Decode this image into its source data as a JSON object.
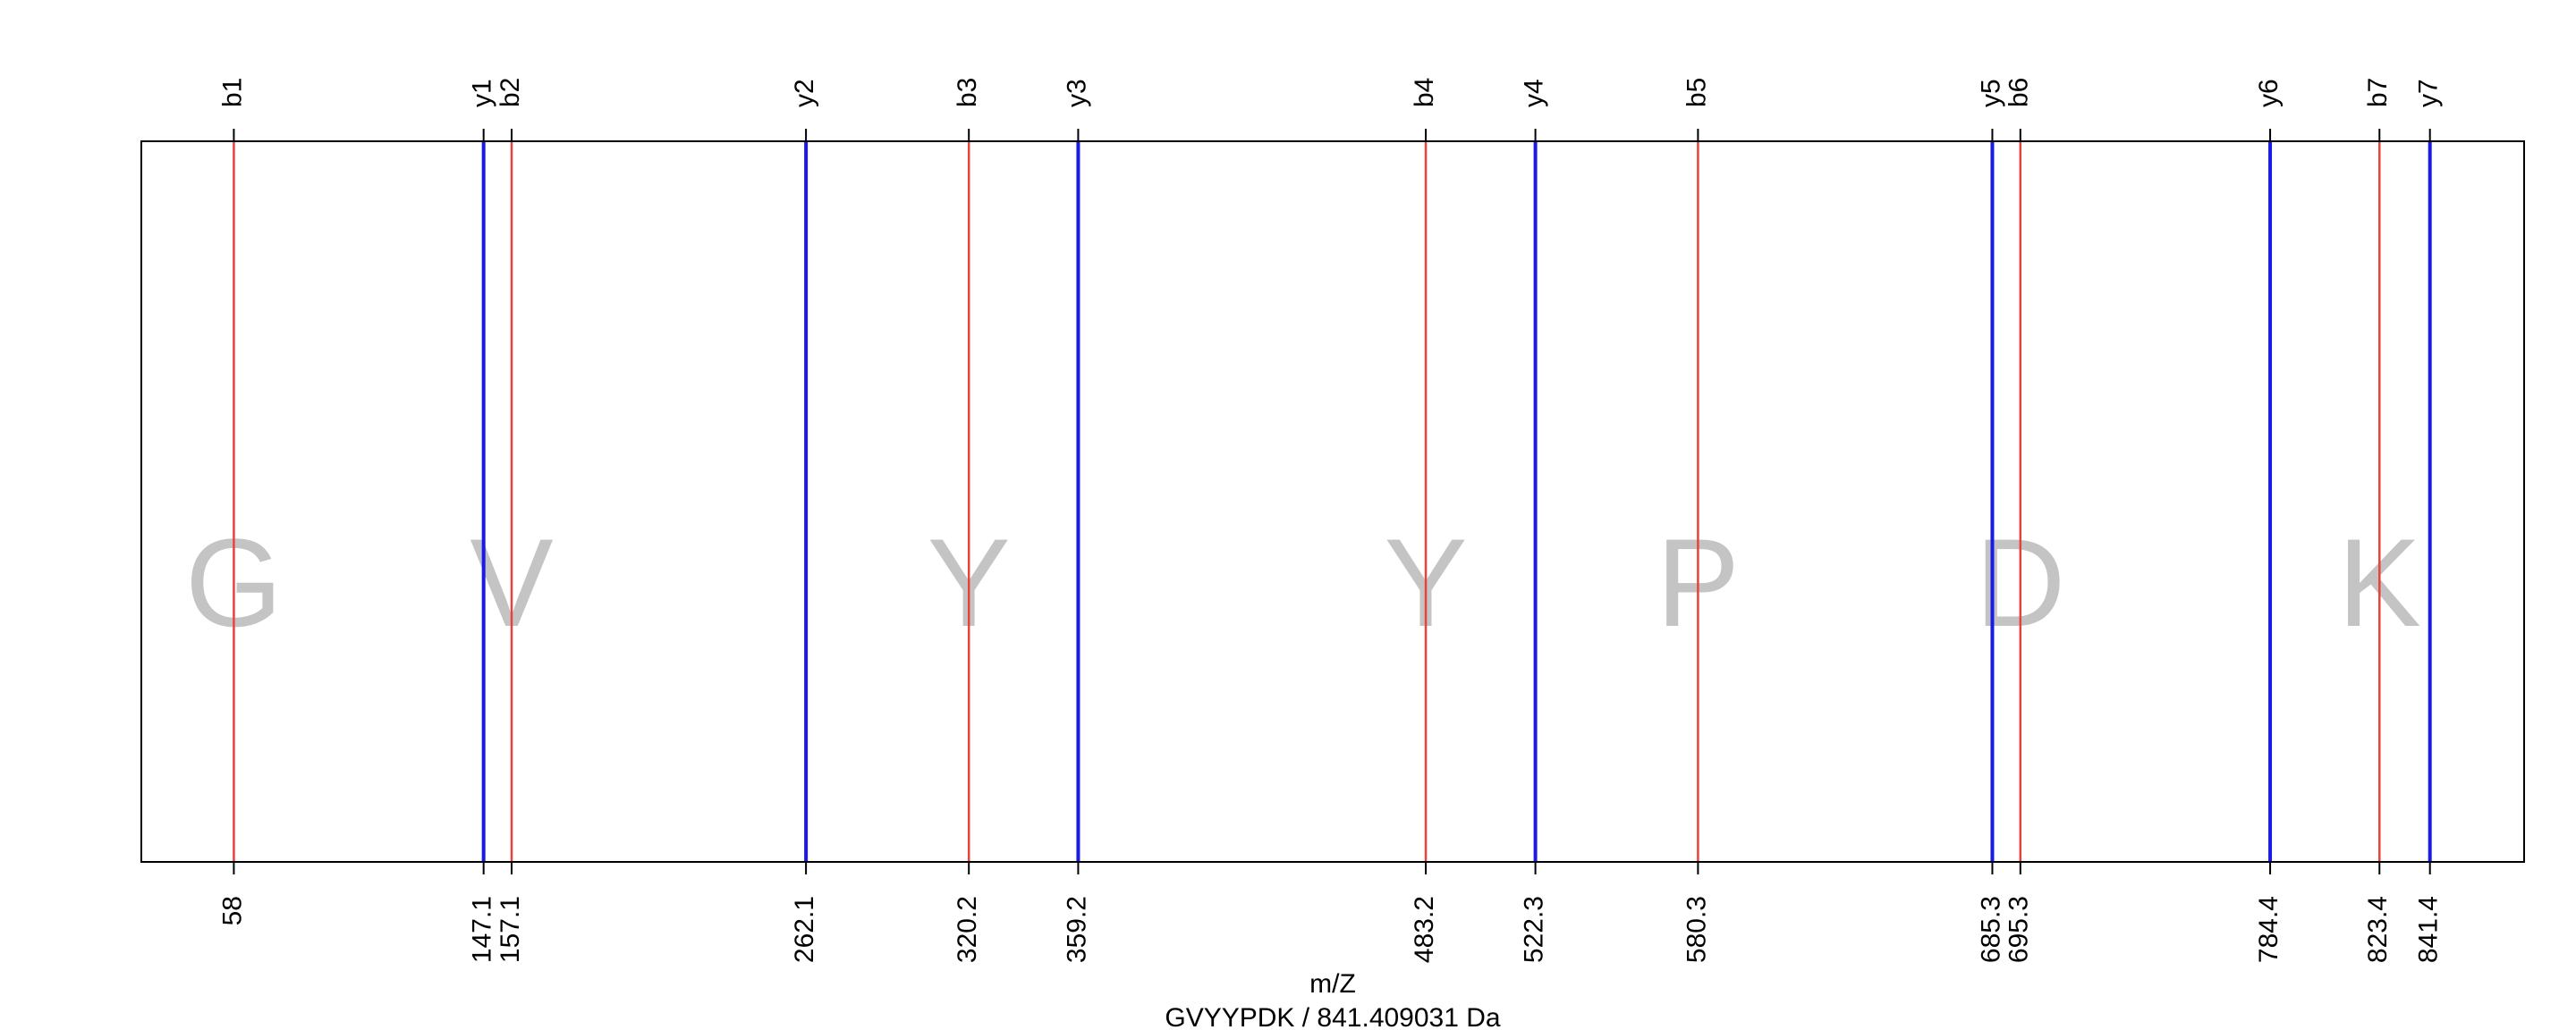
{
  "chart_data": {
    "type": "spectrum-annotation",
    "xlabel": "m/Z",
    "subtitle": "GVYYPDK / 841.409031 Da",
    "xlim": [
      25,
      875
    ],
    "colors": {
      "b": "#e8423c",
      "y": "#1a1ae6",
      "residue": "#c4c4c4",
      "frame": "#000000"
    },
    "ions": [
      {
        "label": "b1",
        "type": "b",
        "mz": 58,
        "tick": "58"
      },
      {
        "label": "y1",
        "type": "y",
        "mz": 147.1,
        "tick": "147.1"
      },
      {
        "label": "b2",
        "type": "b",
        "mz": 157.1,
        "tick": "157.1"
      },
      {
        "label": "y2",
        "type": "y",
        "mz": 262.1,
        "tick": "262.1"
      },
      {
        "label": "b3",
        "type": "b",
        "mz": 320.2,
        "tick": "320.2"
      },
      {
        "label": "y3",
        "type": "y",
        "mz": 359.2,
        "tick": "359.2"
      },
      {
        "label": "b4",
        "type": "b",
        "mz": 483.2,
        "tick": "483.2"
      },
      {
        "label": "y4",
        "type": "y",
        "mz": 522.3,
        "tick": "522.3"
      },
      {
        "label": "b5",
        "type": "b",
        "mz": 580.3,
        "tick": "580.3"
      },
      {
        "label": "y5",
        "type": "y",
        "mz": 685.3,
        "tick": "685.3"
      },
      {
        "label": "b6",
        "type": "b",
        "mz": 695.3,
        "tick": "695.3"
      },
      {
        "label": "y6",
        "type": "y",
        "mz": 784.4,
        "tick": "784.4"
      },
      {
        "label": "b7",
        "type": "b",
        "mz": 823.4,
        "tick": "823.4"
      },
      {
        "label": "y7",
        "type": "y",
        "mz": 841.4,
        "tick": "841.4"
      }
    ],
    "residues": [
      {
        "letter": "G",
        "mz": 58
      },
      {
        "letter": "V",
        "mz": 157.1
      },
      {
        "letter": "Y",
        "mz": 320.2
      },
      {
        "letter": "Y",
        "mz": 483.2
      },
      {
        "letter": "P",
        "mz": 580.3
      },
      {
        "letter": "D",
        "mz": 695.3
      },
      {
        "letter": "K",
        "mz": 823.4
      }
    ]
  }
}
